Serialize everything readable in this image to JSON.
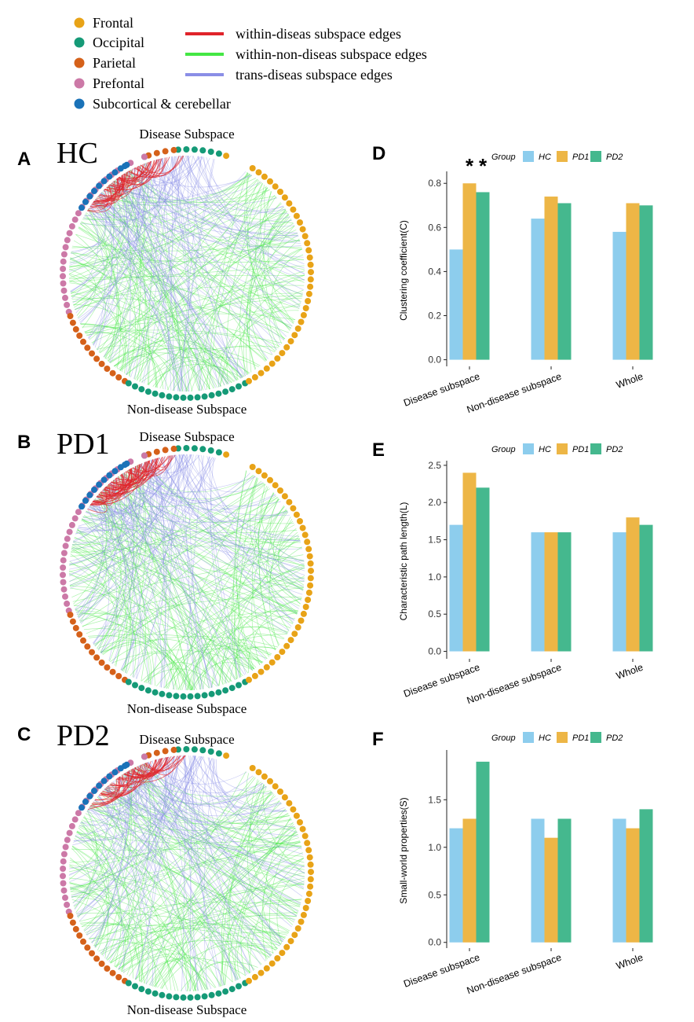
{
  "legend": {
    "regions": [
      {
        "label": "Frontal",
        "color": "#E8A317"
      },
      {
        "label": "Occipital",
        "color": "#159A77"
      },
      {
        "label": "Parietal",
        "color": "#D5611A"
      },
      {
        "label": "Prefontal",
        "color": "#CC79A7"
      },
      {
        "label": "Subcortical & cerebellar",
        "color": "#1A72B8"
      }
    ],
    "edges": [
      {
        "label": "within-diseas subspace edges",
        "color": "#E0232A"
      },
      {
        "label": "within-non-diseas subspace edges",
        "color": "#44E744"
      },
      {
        "label": "trans-diseas subspace edges",
        "color": "#8A8EE6"
      }
    ]
  },
  "networks": [
    {
      "panel": "A",
      "group": "HC",
      "top_label": "Disease Subspace",
      "bottom_label": "Non-disease Subspace"
    },
    {
      "panel": "B",
      "group": "PD1",
      "top_label": "Disease Subspace",
      "bottom_label": "Non-disease Subspace"
    },
    {
      "panel": "C",
      "group": "PD2",
      "top_label": "Disease Subspace",
      "bottom_label": "Non-disease Subspace"
    }
  ],
  "colors": {
    "HC": "#8DCDED",
    "PD1": "#EDB646",
    "PD2": "#45B88E"
  },
  "chart_data": [
    {
      "panel": "D",
      "type": "bar",
      "legend_title": "Group",
      "categories": [
        "Disease subspace",
        "Non-disease subspace",
        "Whole"
      ],
      "series": [
        {
          "name": "HC",
          "values": [
            0.5,
            0.64,
            0.58
          ]
        },
        {
          "name": "PD1",
          "values": [
            0.8,
            0.74,
            0.71
          ]
        },
        {
          "name": "PD2",
          "values": [
            0.76,
            0.71,
            0.7
          ]
        }
      ],
      "ylabel": "Clustering coefficient(C)",
      "ylim": [
        -0.03,
        0.84
      ],
      "yticks": [
        0.0,
        0.2,
        0.4,
        0.6,
        0.8
      ],
      "tick_labels": [
        "0.0",
        "0.2",
        "0.4",
        "0.6",
        "0.8"
      ],
      "annotations": [
        {
          "text": "*",
          "category": 0,
          "series": "PD1"
        },
        {
          "text": "*",
          "category": 0,
          "series": "PD2"
        }
      ]
    },
    {
      "panel": "E",
      "type": "bar",
      "legend_title": "Group",
      "categories": [
        "Disease subspace",
        "Non-disease subspace",
        "Whole"
      ],
      "series": [
        {
          "name": "HC",
          "values": [
            1.7,
            1.6,
            1.6
          ]
        },
        {
          "name": "PD1",
          "values": [
            2.4,
            1.6,
            1.8
          ]
        },
        {
          "name": "PD2",
          "values": [
            2.2,
            1.6,
            1.7
          ]
        }
      ],
      "ylabel": "Characteristic path length(L)",
      "ylim": [
        -0.1,
        2.52
      ],
      "yticks": [
        0.0,
        0.5,
        1.0,
        1.5,
        2.0,
        2.5
      ],
      "tick_labels": [
        "0.0",
        "0.5",
        "1.0",
        "1.5",
        "2.0",
        "2.5"
      ],
      "annotations": []
    },
    {
      "panel": "F",
      "type": "bar",
      "legend_title": "Group",
      "categories": [
        "Disease subspace",
        "Non-disease subspace",
        "Whole"
      ],
      "series": [
        {
          "name": "HC",
          "values": [
            1.2,
            1.3,
            1.3
          ]
        },
        {
          "name": "PD1",
          "values": [
            1.3,
            1.1,
            1.2
          ]
        },
        {
          "name": "PD2",
          "values": [
            1.9,
            1.3,
            1.4
          ]
        }
      ],
      "ylabel": "Small-world properties(S)",
      "ylim": [
        -0.06,
        1.99
      ],
      "yticks": [
        0.0,
        0.5,
        1.0,
        1.5
      ],
      "tick_labels": [
        "0.0",
        "0.5",
        "1.0",
        "1.5"
      ],
      "annotations": []
    }
  ]
}
